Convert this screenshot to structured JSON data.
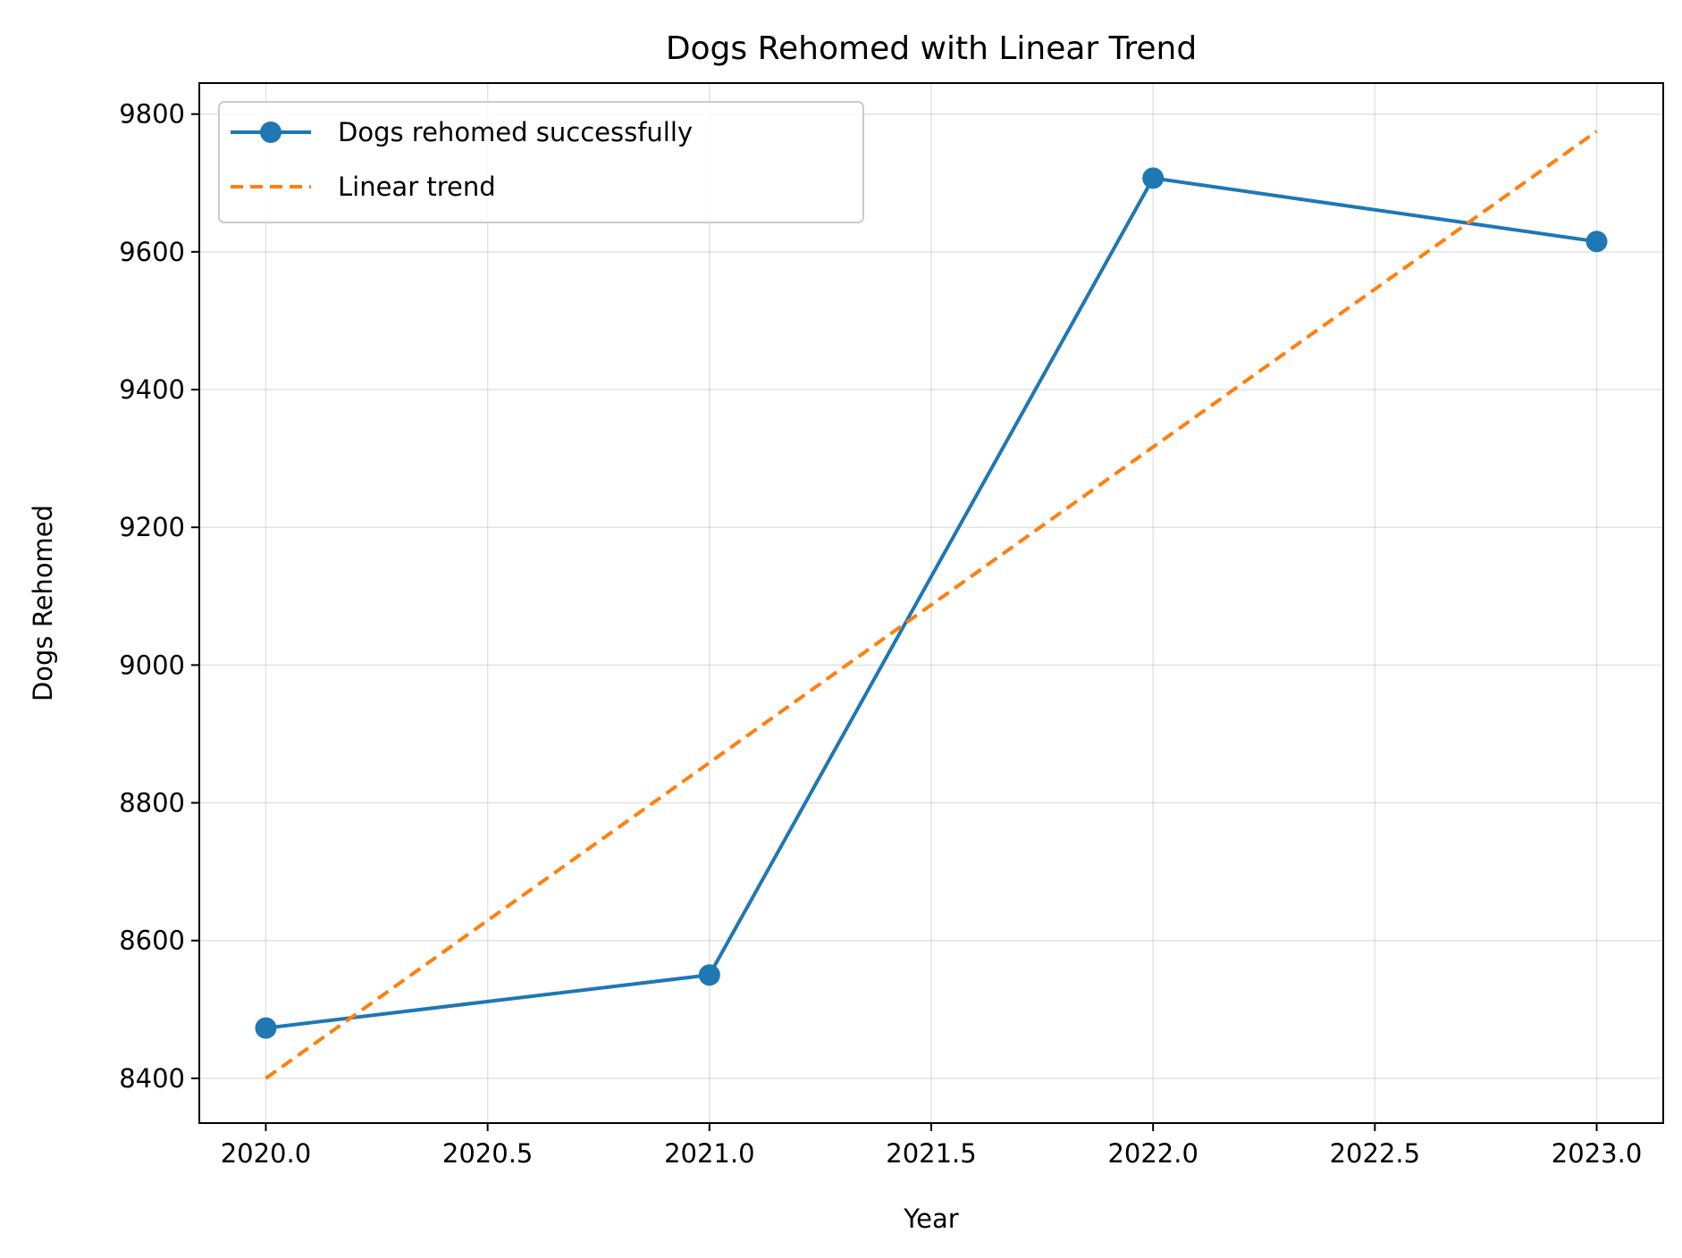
{
  "chart_data": {
    "type": "line",
    "title": "Dogs Rehomed with Linear Trend",
    "xlabel": "Year",
    "ylabel": "Dogs Rehomed",
    "xlim": [
      2019.85,
      2023.15
    ],
    "ylim": [
      8335,
      9845
    ],
    "xticks": [
      2020.0,
      2020.5,
      2021.0,
      2021.5,
      2022.0,
      2022.5,
      2023.0
    ],
    "xtick_labels": [
      "2020.0",
      "2020.5",
      "2021.0",
      "2021.5",
      "2022.0",
      "2022.5",
      "2023.0"
    ],
    "yticks": [
      8400,
      8600,
      8800,
      9000,
      9200,
      9400,
      9600,
      9800
    ],
    "ytick_labels": [
      "8400",
      "8600",
      "8800",
      "9000",
      "9200",
      "9400",
      "9600",
      "9800"
    ],
    "grid": true,
    "legend_position": "top-left",
    "series": [
      {
        "name": "Dogs rehomed successfully",
        "style": "solid-with-markers",
        "color": "#1f77b4",
        "x": [
          2020,
          2021,
          2022,
          2023
        ],
        "y": [
          8473,
          8550,
          9707,
          9615
        ]
      },
      {
        "name": "Linear trend",
        "style": "dashed",
        "color": "#ff7f0e",
        "x": [
          2020,
          2023
        ],
        "y": [
          8400,
          9775
        ]
      }
    ]
  }
}
